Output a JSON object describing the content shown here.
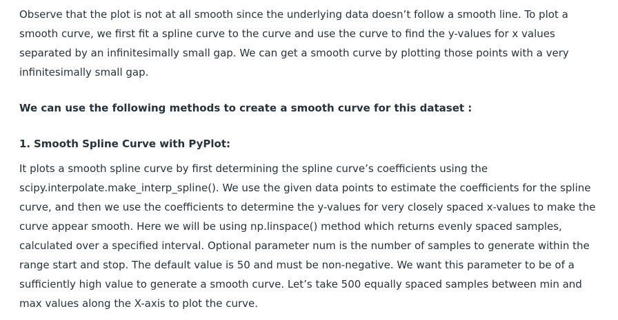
{
  "intro": {
    "text": "Observe that the plot is not at all smooth since the underlying data doesn’t follow a smooth line. To plot a smooth curve, we first fit a spline curve to the curve and use the curve to find the y-values for x values separated by an infinitesimally small gap. We can get a smooth curve by plotting those points with a very infinitesimally small gap."
  },
  "methods_intro": {
    "text": "We can use the following methods to create a smooth curve for this dataset :"
  },
  "section1": {
    "number": "1.",
    "title": "Smooth Spline Curve with PyPlot:",
    "body": "It plots a smooth spline curve by first determining the spline curve’s coefficients using the scipy.interpolate.make_interp_spline(). We use the given data points to estimate the coefficients for the spline curve, and then we use the coefficients to determine the y-values for very closely spaced x-values to make the curve appear smooth. Here we will be using np.linspace() method which returns evenly spaced samples, calculated over a specified interval. Optional parameter num is the number of samples to generate within the range start and stop. The default value is 50 and must be non-negative. We want this parameter to be of a sufficiently high value to generate a smooth curve. Let’s take 500 equally spaced samples between min and max values along the X-axis to plot the curve."
  }
}
